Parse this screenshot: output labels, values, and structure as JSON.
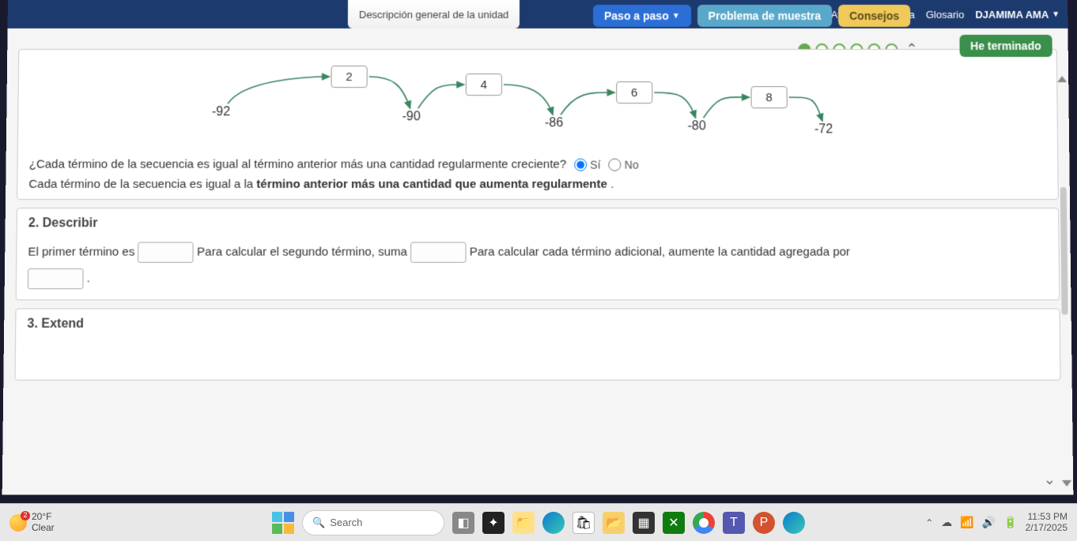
{
  "topbar": {
    "general_tab": "Descripción general de la unidad",
    "help": "Ayuda del sistema",
    "glossary": "Glosario",
    "user": "DJAMIMA AMA"
  },
  "buttons": {
    "step": "Paso a paso",
    "sample": "Problema de muestra",
    "tips": "Consejos",
    "done": "He terminado"
  },
  "sequence": {
    "terms": [
      "-92",
      "-90",
      "-86",
      "-80",
      "-72"
    ],
    "diffs": [
      "2",
      "4",
      "6",
      "8"
    ],
    "term_x": [
      230,
      470,
      650,
      830,
      990
    ],
    "term_y": [
      60,
      66,
      74,
      78,
      82
    ],
    "diff_x": [
      380,
      550,
      740,
      910
    ],
    "diff_y": [
      10,
      20,
      30,
      36
    ]
  },
  "question": {
    "text": "¿Cada término de la secuencia es igual al término anterior más una cantidad regularmente creciente?",
    "yes": "Sí",
    "no": "No",
    "selected": "yes"
  },
  "statement": {
    "pre": "Cada término de la secuencia es igual a la ",
    "bold": "término anterior más una cantidad que aumenta regularmente",
    "post": " ."
  },
  "section2": {
    "title": "2. Describir",
    "l1a": "El primer término es ",
    "l1b": " Para calcular el segundo término, suma ",
    "l1c": " Para calcular cada término adicional, aumente la cantidad agregada por",
    "l2": " ."
  },
  "section3": {
    "title": "3. Extend"
  },
  "taskbar": {
    "temp": "20°F",
    "cond": "Clear",
    "search": "Search",
    "time": "11:53 PM",
    "date": "2/17/2025"
  },
  "colors": {
    "arrow": "#3a8561"
  }
}
